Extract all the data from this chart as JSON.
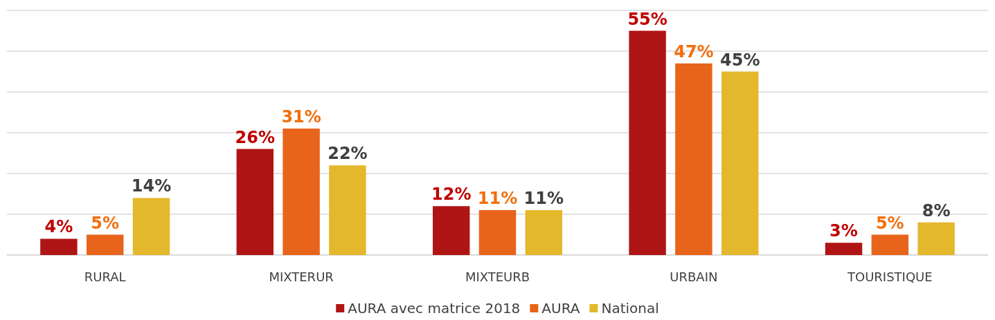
{
  "chart_data": {
    "type": "bar",
    "categories": [
      "RURAL",
      "MIXTERUR",
      "MIXTEURB",
      "URBAIN",
      "TOURISTIQUE"
    ],
    "series": [
      {
        "name": "AURA avec matrice 2018",
        "color": "#b01515",
        "values": [
          4,
          26,
          12,
          55,
          3
        ],
        "value_labels": [
          "4%",
          "26%",
          "12%",
          "55%",
          "3%"
        ]
      },
      {
        "name": "AURA",
        "color": "#e8641a",
        "values": [
          5,
          31,
          11,
          47,
          5
        ],
        "value_labels": [
          "5%",
          "31%",
          "11%",
          "47%",
          "5%"
        ]
      },
      {
        "name": "National",
        "color": "#e4b82c",
        "values": [
          14,
          22,
          11,
          45,
          8
        ],
        "value_labels": [
          "14%",
          "22%",
          "11%",
          "45%",
          "8%"
        ]
      }
    ],
    "grid": "y",
    "legend": "bottom",
    "tick_labels": "x"
  }
}
